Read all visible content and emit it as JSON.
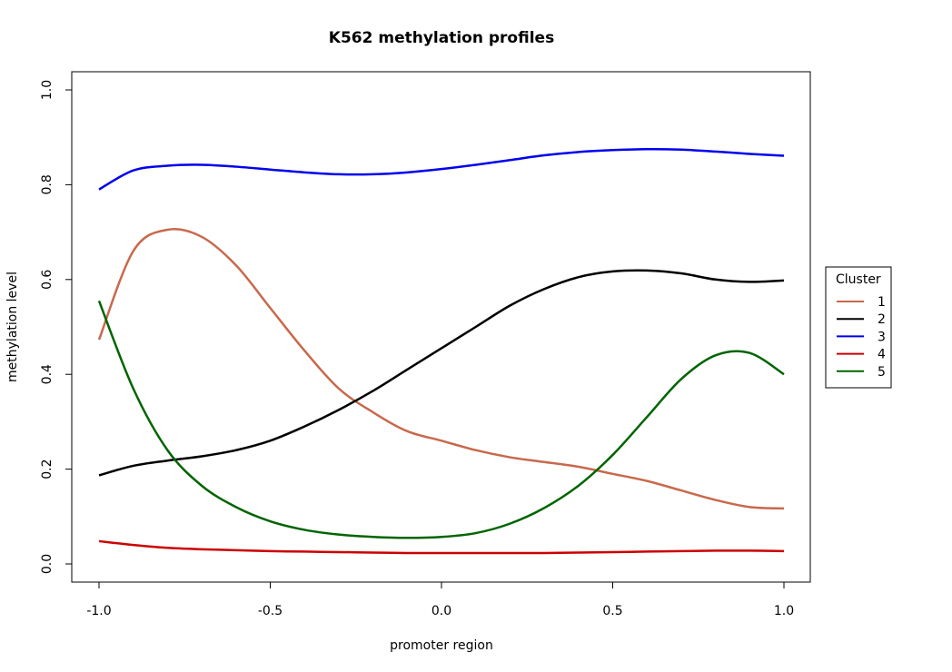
{
  "chart_data": {
    "type": "line",
    "title": "K562 methylation profiles",
    "xlabel": "promoter region",
    "ylabel": "methylation level",
    "xlim": [
      -1.0,
      1.0
    ],
    "ylim": [
      0.0,
      1.0
    ],
    "xticks": [
      "-1.0",
      "-0.5",
      "0.0",
      "0.5",
      "1.0"
    ],
    "yticks": [
      "0.0",
      "0.2",
      "0.4",
      "0.6",
      "0.8",
      "1.0"
    ],
    "grid": false,
    "legend": {
      "title": "Cluster",
      "placement": "right"
    },
    "series": [
      {
        "name": "1",
        "color": "#c8694c",
        "x": [
          -1.0,
          -0.9,
          -0.8,
          -0.7,
          -0.6,
          -0.5,
          -0.4,
          -0.3,
          -0.2,
          -0.1,
          0.0,
          0.1,
          0.2,
          0.3,
          0.4,
          0.5,
          0.6,
          0.7,
          0.8,
          0.9,
          1.0
        ],
        "y": [
          0.473,
          0.66,
          0.705,
          0.69,
          0.63,
          0.54,
          0.45,
          0.37,
          0.32,
          0.28,
          0.26,
          0.24,
          0.225,
          0.215,
          0.205,
          0.19,
          0.175,
          0.155,
          0.135,
          0.12,
          0.117
        ]
      },
      {
        "name": "2",
        "color": "#000000",
        "x": [
          -1.0,
          -0.9,
          -0.8,
          -0.7,
          -0.6,
          -0.5,
          -0.4,
          -0.3,
          -0.2,
          -0.1,
          0.0,
          0.1,
          0.2,
          0.3,
          0.4,
          0.5,
          0.6,
          0.7,
          0.8,
          0.9,
          1.0
        ],
        "y": [
          0.187,
          0.207,
          0.218,
          0.227,
          0.24,
          0.26,
          0.29,
          0.325,
          0.365,
          0.41,
          0.455,
          0.5,
          0.545,
          0.58,
          0.605,
          0.617,
          0.619,
          0.613,
          0.6,
          0.595,
          0.598
        ]
      },
      {
        "name": "3",
        "color": "#0000ee",
        "x": [
          -1.0,
          -0.9,
          -0.8,
          -0.7,
          -0.6,
          -0.5,
          -0.4,
          -0.3,
          -0.2,
          -0.1,
          0.0,
          0.1,
          0.2,
          0.3,
          0.4,
          0.5,
          0.6,
          0.7,
          0.8,
          0.9,
          1.0
        ],
        "y": [
          0.79,
          0.83,
          0.84,
          0.842,
          0.838,
          0.832,
          0.826,
          0.822,
          0.822,
          0.826,
          0.833,
          0.842,
          0.852,
          0.862,
          0.869,
          0.873,
          0.875,
          0.874,
          0.87,
          0.865,
          0.861
        ]
      },
      {
        "name": "4",
        "color": "#cc0000",
        "x": [
          -1.0,
          -0.9,
          -0.8,
          -0.7,
          -0.6,
          -0.5,
          -0.4,
          -0.3,
          -0.2,
          -0.1,
          0.0,
          0.1,
          0.2,
          0.3,
          0.4,
          0.5,
          0.6,
          0.7,
          0.8,
          0.9,
          1.0
        ],
        "y": [
          0.048,
          0.04,
          0.034,
          0.031,
          0.029,
          0.027,
          0.026,
          0.025,
          0.024,
          0.023,
          0.023,
          0.023,
          0.023,
          0.023,
          0.024,
          0.025,
          0.026,
          0.027,
          0.028,
          0.028,
          0.027
        ]
      },
      {
        "name": "5",
        "color": "#006400",
        "x": [
          -1.0,
          -0.9,
          -0.8,
          -0.7,
          -0.6,
          -0.5,
          -0.4,
          -0.3,
          -0.2,
          -0.1,
          0.0,
          0.1,
          0.2,
          0.3,
          0.4,
          0.5,
          0.6,
          0.7,
          0.8,
          0.9,
          1.0
        ],
        "y": [
          0.555,
          0.37,
          0.24,
          0.165,
          0.12,
          0.09,
          0.072,
          0.062,
          0.057,
          0.055,
          0.057,
          0.065,
          0.085,
          0.118,
          0.165,
          0.23,
          0.31,
          0.39,
          0.44,
          0.445,
          0.4
        ]
      }
    ]
  }
}
